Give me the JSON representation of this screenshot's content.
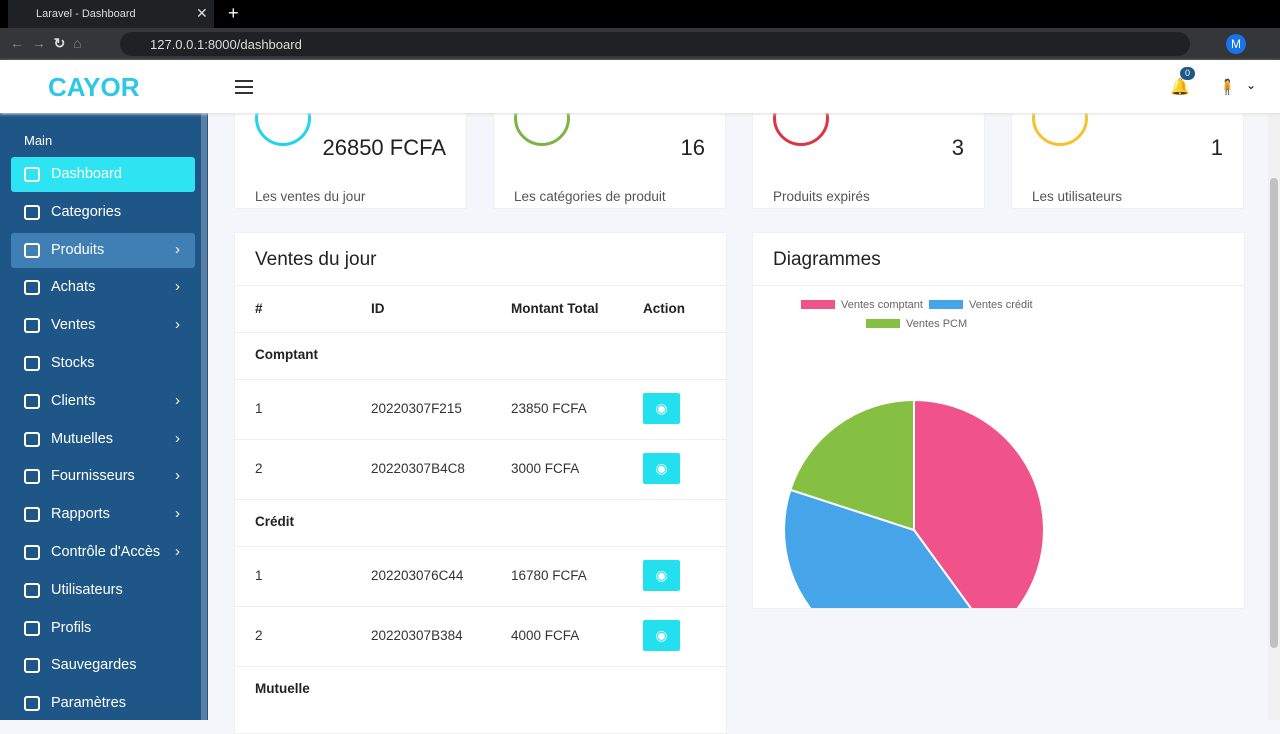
{
  "browser": {
    "tab_title": "Laravel - Dashboard",
    "url": "127.0.0.1:8000/dashboard",
    "profile": "M"
  },
  "header": {
    "logo": "CAYOR",
    "notification_count": "0"
  },
  "sidebar": {
    "section": "Main",
    "items": [
      {
        "label": "Dashboard",
        "submenu": false
      },
      {
        "label": "Categories",
        "submenu": false
      },
      {
        "label": "Produits",
        "submenu": true
      },
      {
        "label": "Achats",
        "submenu": true
      },
      {
        "label": "Ventes",
        "submenu": true
      },
      {
        "label": "Stocks",
        "submenu": false
      },
      {
        "label": "Clients",
        "submenu": true
      },
      {
        "label": "Mutuelles",
        "submenu": true
      },
      {
        "label": "Fournisseurs",
        "submenu": true
      },
      {
        "label": "Rapports",
        "submenu": true
      },
      {
        "label": "Contrôle d'Accès",
        "submenu": true
      },
      {
        "label": "Utilisateurs",
        "submenu": false
      },
      {
        "label": "Profils",
        "submenu": false
      },
      {
        "label": "Sauvegardes",
        "submenu": false
      },
      {
        "label": "Paramètres",
        "submenu": false
      }
    ]
  },
  "stats": [
    {
      "value": "26850 FCFA",
      "label": "Les ventes du jour",
      "color": "#22d3ee",
      "progress": 50
    },
    {
      "value": "16",
      "label": "Les catégories de produit",
      "color": "#7cb342",
      "progress": 50
    },
    {
      "value": "3",
      "label": "Produits expirés",
      "color": "#dc3545",
      "progress": 50
    },
    {
      "value": "1",
      "label": "Les utilisateurs",
      "color": "#f4c430",
      "progress": 50
    }
  ],
  "table": {
    "title": "Ventes du jour",
    "headers": [
      "#",
      "ID",
      "Montant Total",
      "Action"
    ],
    "groups": [
      {
        "name": "Comptant",
        "rows": [
          [
            "1",
            "20220307F215",
            "23850 FCFA"
          ],
          [
            "2",
            "20220307B4C8",
            "3000 FCFA"
          ]
        ]
      },
      {
        "name": "Crédit",
        "rows": [
          [
            "1",
            "202203076C44",
            "16780 FCFA"
          ],
          [
            "2",
            "20220307B384",
            "4000 FCFA"
          ]
        ]
      },
      {
        "name": "Mutuelle",
        "rows": []
      }
    ]
  },
  "chart_data": {
    "type": "pie",
    "title": "Diagrammes",
    "categories": [
      "Ventes comptant",
      "Ventes crédit",
      "Ventes PCM"
    ],
    "values": [
      40,
      40,
      20
    ],
    "colors": [
      "#f0538a",
      "#45a5e8",
      "#86c042"
    ]
  }
}
